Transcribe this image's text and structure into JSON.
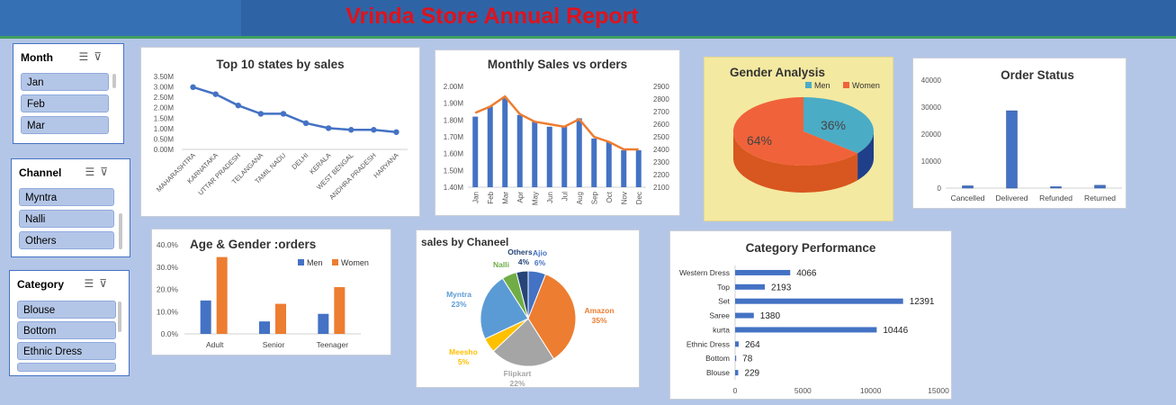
{
  "report_title": "Vrinda Store Annual Report",
  "slicers": [
    {
      "title": "Month",
      "items": [
        "Jan",
        "Feb",
        "Mar"
      ]
    },
    {
      "title": "Channel",
      "items": [
        "Myntra",
        "Nalli",
        "Others"
      ]
    },
    {
      "title": "Category",
      "items": [
        "Blouse",
        "Bottom",
        "Ethnic Dress"
      ]
    }
  ],
  "charts": {
    "states": {
      "type": "line",
      "title": "Top 10 states by sales",
      "categories": [
        "MAHARASHTRA",
        "KARNATAKA",
        "UTTAR PRADESH",
        "TELANGANA",
        "TAMIL NADU",
        "DELHI",
        "KERALA",
        "WEST BENGAL",
        "ANDHRA PRADESH",
        "HARYANA"
      ],
      "values": [
        2.99,
        2.65,
        2.11,
        1.71,
        1.71,
        1.26,
        1.02,
        0.94,
        0.94,
        0.83
      ],
      "ylim": [
        0,
        3.5
      ],
      "yticks": [
        "0.00M",
        "0.50M",
        "1.00M",
        "1.50M",
        "2.00M",
        "2.50M",
        "3.00M",
        "3.50M"
      ],
      "color": "#4472c4"
    },
    "monthly": {
      "type": "bar+line",
      "title": "Monthly Sales vs orders",
      "categories": [
        "Jan",
        "Feb",
        "Mar",
        "Apr",
        "May",
        "Jun",
        "Jul",
        "Aug",
        "Sep",
        "Oct",
        "Nov",
        "Dec"
      ],
      "sales": [
        1.82,
        1.88,
        1.93,
        1.83,
        1.79,
        1.76,
        1.76,
        1.81,
        1.69,
        1.67,
        1.62,
        1.62
      ],
      "orders": [
        2690,
        2740,
        2820,
        2680,
        2620,
        2600,
        2580,
        2640,
        2500,
        2460,
        2400,
        2400
      ],
      "ylim_left": [
        1.4,
        2.0
      ],
      "ylim_right": [
        2100,
        2900
      ],
      "yticks_left": [
        "1.40M",
        "1.50M",
        "1.60M",
        "1.70M",
        "1.80M",
        "1.90M",
        "2.00M"
      ],
      "yticks_right": [
        "2100",
        "2200",
        "2300",
        "2400",
        "2500",
        "2600",
        "2700",
        "2800",
        "2900"
      ],
      "bar_color": "#4472c4",
      "line_color": "#ed7d31"
    },
    "gender": {
      "type": "pie",
      "title": "Gender Analysis",
      "legend": [
        {
          "name": "Men",
          "color": "#4bacc6"
        },
        {
          "name": "Women",
          "color": "#f0623a"
        }
      ],
      "values": [
        36,
        64
      ],
      "labels": [
        "36%",
        "64%"
      ]
    },
    "order_status": {
      "type": "bar",
      "title": "Order Status",
      "categories": [
        "Cancelled",
        "Delivered",
        "Refunded",
        "Returned"
      ],
      "values": [
        844,
        28641,
        517,
        1045
      ],
      "ylim": [
        0,
        40000
      ],
      "yticks": [
        "0",
        "10000",
        "20000",
        "30000",
        "40000"
      ],
      "color": "#4472c4"
    },
    "age_gender": {
      "type": "grouped-bar",
      "title": "Age & Gender :orders",
      "categories": [
        "Adult",
        "Senior",
        "Teenager"
      ],
      "series": [
        {
          "name": "Men",
          "values": [
            15.0,
            5.6,
            9.0
          ],
          "color": "#4472c4"
        },
        {
          "name": "Women",
          "values": [
            34.5,
            13.5,
            21.0
          ],
          "color": "#ed7d31"
        }
      ],
      "ylim": [
        0,
        40
      ],
      "yticks": [
        "0.0%",
        "10.0%",
        "20.0%",
        "30.0%",
        "40.0%"
      ]
    },
    "channel": {
      "type": "pie",
      "title": "sales by Chaneel",
      "slices": [
        {
          "name": "Ajio",
          "pct": "6%",
          "value": 6,
          "color": "#4472c4"
        },
        {
          "name": "Amazon",
          "pct": "35%",
          "value": 35,
          "color": "#ed7d31"
        },
        {
          "name": "Flipkart",
          "pct": "22%",
          "value": 22,
          "color": "#a5a5a5"
        },
        {
          "name": "Meesho",
          "pct": "5%",
          "value": 5,
          "color": "#ffc000"
        },
        {
          "name": "Myntra",
          "pct": "23%",
          "value": 23,
          "color": "#5b9bd5"
        },
        {
          "name": "Nalli",
          "pct": "",
          "value": 5,
          "color": "#70ad47"
        },
        {
          "name": "Others",
          "pct": "4%",
          "value": 4,
          "color": "#264478"
        }
      ]
    },
    "category": {
      "type": "hbar",
      "title": "Category Performance",
      "categories": [
        "Western Dress",
        "Top",
        "Set",
        "Saree",
        "kurta",
        "Ethnic Dress",
        "Bottom",
        "Blouse"
      ],
      "values": [
        4066,
        2193,
        12391,
        1380,
        10446,
        264,
        78,
        229
      ],
      "labels": [
        "4066",
        "2193",
        "12391",
        "1380",
        "10446",
        "264",
        "78",
        "229"
      ],
      "xlim": [
        0,
        15000
      ],
      "xticks": [
        "0",
        "5000",
        "10000",
        "15000"
      ],
      "color": "#4472c4"
    }
  }
}
